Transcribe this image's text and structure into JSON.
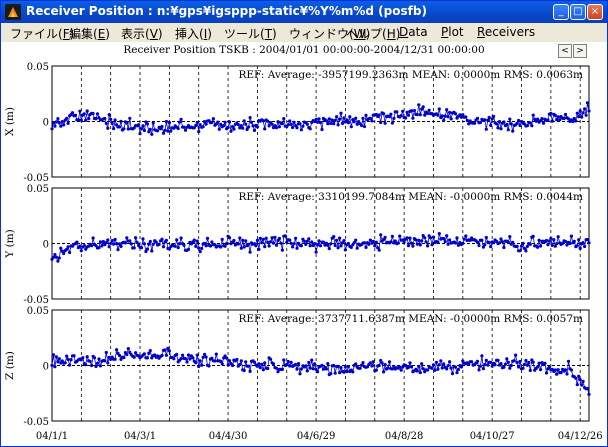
{
  "window": {
    "title": "Receiver Position : n:¥gps¥igsppp-static¥%Y%m%d (posfb)",
    "minimize_glyph": "_",
    "maximize_glyph": "□",
    "close_glyph": "×"
  },
  "menu": {
    "items": [
      {
        "label": "ファイル(F)",
        "accel": "F"
      },
      {
        "label": "編集(E)",
        "accel": "E"
      },
      {
        "label": "表示(V)",
        "accel": "V"
      },
      {
        "label": "挿入(I)",
        "accel": "I"
      },
      {
        "label": "ツール(T)",
        "accel": "T"
      },
      {
        "label": "ウィンドウ(W)",
        "accel": "W"
      },
      {
        "label": "ヘルプ(H)",
        "accel": "H"
      },
      {
        "label": "Data",
        "accel": "D"
      },
      {
        "label": "Plot",
        "accel": "P"
      },
      {
        "label": "Receivers",
        "accel": "R"
      }
    ]
  },
  "plot": {
    "title": "Receiver Position TSKB : 2004/01/01 00:00:00-2004/12/31 00:00:00",
    "prev_label": "<",
    "next_label": ">"
  },
  "chart_data": [
    {
      "type": "scatter",
      "panel": "x",
      "ylabel": "X (m)",
      "annotation": "REF: Average: -3957199.2363m MEAN: 0.0000m RMS: 0.0063m",
      "ylim": [
        -0.05,
        0.05
      ],
      "yticks": [
        "0.05",
        "0",
        "-0.05"
      ],
      "xlim": [
        0,
        366
      ],
      "color": "#0000cc",
      "trend": [
        [
          0,
          -0.002
        ],
        [
          15,
          0.003
        ],
        [
          30,
          0.006
        ],
        [
          45,
          -0.003
        ],
        [
          60,
          -0.006
        ],
        [
          75,
          -0.007
        ],
        [
          90,
          -0.004
        ],
        [
          110,
          -0.002
        ],
        [
          130,
          -0.004
        ],
        [
          150,
          -0.002
        ],
        [
          170,
          -0.004
        ],
        [
          190,
          0.0
        ],
        [
          210,
          0.002
        ],
        [
          230,
          0.005
        ],
        [
          250,
          0.008
        ],
        [
          265,
          0.006
        ],
        [
          280,
          0.004
        ],
        [
          300,
          -0.001
        ],
        [
          315,
          -0.003
        ],
        [
          330,
          0.002
        ],
        [
          345,
          0.004
        ],
        [
          355,
          0.003
        ],
        [
          366,
          0.01
        ]
      ]
    },
    {
      "type": "scatter",
      "panel": "y",
      "ylabel": "Y (m)",
      "annotation": "REF: Average: 3310199.7084m MEAN: -0.0000m RMS: 0.0044m",
      "ylim": [
        -0.05,
        0.05
      ],
      "yticks": [
        "0.05",
        "0",
        "-0.05"
      ],
      "xlim": [
        0,
        366
      ],
      "color": "#0000cc",
      "trend": [
        [
          0,
          -0.01
        ],
        [
          10,
          -0.005
        ],
        [
          25,
          -0.001
        ],
        [
          45,
          0.0
        ],
        [
          60,
          0.0
        ],
        [
          80,
          -0.001
        ],
        [
          100,
          -0.001
        ],
        [
          120,
          0.0
        ],
        [
          140,
          0.001
        ],
        [
          160,
          0.001
        ],
        [
          180,
          0.0
        ],
        [
          200,
          0.0
        ],
        [
          220,
          0.001
        ],
        [
          240,
          0.002
        ],
        [
          260,
          0.002
        ],
        [
          280,
          0.003
        ],
        [
          300,
          0.001
        ],
        [
          320,
          0.0
        ],
        [
          340,
          0.001
        ],
        [
          366,
          0.0
        ]
      ]
    },
    {
      "type": "scatter",
      "panel": "z",
      "ylabel": "Z (m)",
      "annotation": "REF: Average: 3737711.6387m MEAN: -0.0000m RMS: 0.0057m",
      "ylim": [
        -0.05,
        0.05
      ],
      "yticks": [
        "0.05",
        "0",
        "-0.05"
      ],
      "xlim": [
        0,
        366
      ],
      "color": "#0000cc",
      "trend": [
        [
          0,
          0.004
        ],
        [
          15,
          0.005
        ],
        [
          30,
          0.004
        ],
        [
          45,
          0.008
        ],
        [
          60,
          0.009
        ],
        [
          80,
          0.008
        ],
        [
          100,
          0.005
        ],
        [
          120,
          0.003
        ],
        [
          140,
          0.0
        ],
        [
          160,
          -0.001
        ],
        [
          180,
          -0.002
        ],
        [
          200,
          -0.003
        ],
        [
          220,
          -0.002
        ],
        [
          240,
          -0.001
        ],
        [
          260,
          -0.002
        ],
        [
          280,
          0.0
        ],
        [
          300,
          0.002
        ],
        [
          320,
          0.003
        ],
        [
          340,
          -0.001
        ],
        [
          352,
          -0.004
        ],
        [
          360,
          -0.012
        ],
        [
          366,
          -0.022
        ]
      ]
    }
  ],
  "x_axis": {
    "tick_labels": [
      {
        "label": "04/1/1",
        "day": 0
      },
      {
        "label": "04/3/1",
        "day": 60
      },
      {
        "label": "04/4/30",
        "day": 120
      },
      {
        "label": "04/6/29",
        "day": 180
      },
      {
        "label": "04/8/28",
        "day": 240
      },
      {
        "label": "04/10/27",
        "day": 300
      },
      {
        "label": "04/12/26",
        "day": 360
      }
    ],
    "gridline_days": [
      0,
      20,
      40,
      60,
      80,
      100,
      120,
      140,
      160,
      180,
      200,
      220,
      240,
      260,
      280,
      300,
      320,
      340,
      360
    ]
  }
}
